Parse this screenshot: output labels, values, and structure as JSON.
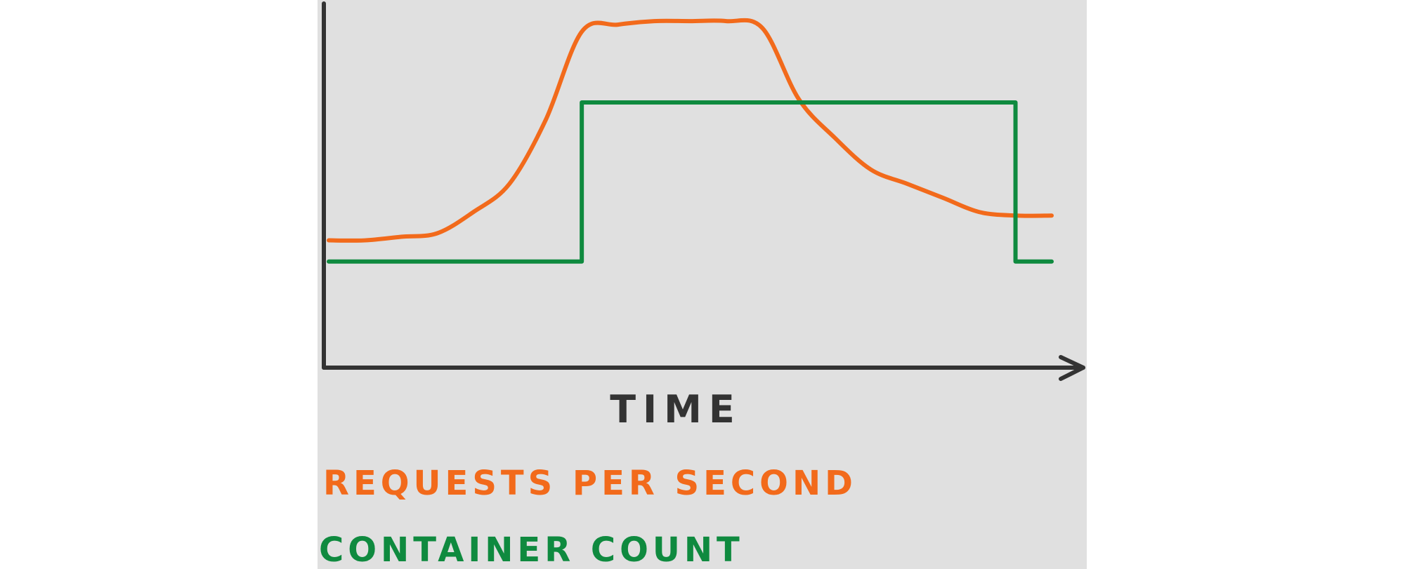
{
  "chart_data": {
    "type": "line",
    "xlabel": "TIME",
    "ylabel": "",
    "x": [
      0,
      1,
      2,
      3,
      4,
      5,
      6,
      7,
      8,
      9,
      10,
      11,
      12,
      13,
      14,
      15,
      16,
      17,
      18,
      19,
      20
    ],
    "xlim": [
      0,
      20
    ],
    "ylim": [
      0,
      100
    ],
    "grid": false,
    "legend": "bottom",
    "series": [
      {
        "name": "REQUESTS PER SECOND",
        "color": "#f26a1b",
        "values": [
          36,
          36,
          37,
          38,
          44,
          52,
          70,
          95,
          97,
          98,
          98,
          98,
          96,
          76,
          65,
          56,
          52,
          48,
          44,
          43,
          43
        ]
      },
      {
        "name": "CONTAINER COUNT",
        "color": "#0f8a3f",
        "values": [
          30,
          30,
          30,
          30,
          30,
          30,
          30,
          75,
          75,
          75,
          75,
          75,
          75,
          75,
          75,
          75,
          75,
          75,
          75,
          30,
          30
        ]
      }
    ]
  }
}
